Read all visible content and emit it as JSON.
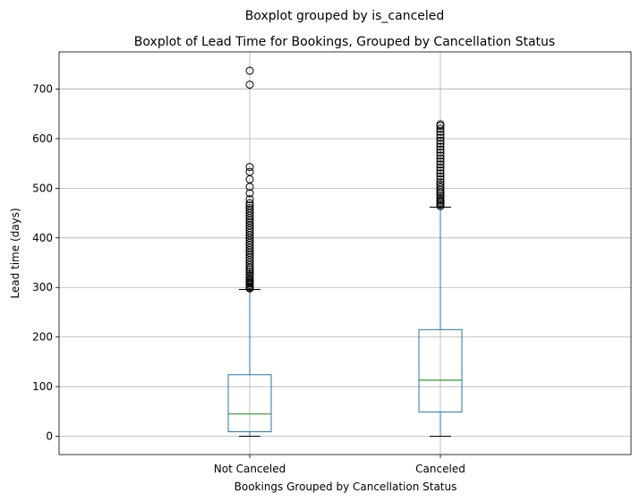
{
  "chart_data": {
    "type": "box",
    "suptitle": "Boxplot grouped by is_canceled",
    "title": "Boxplot of Lead Time for Bookings, Grouped by Cancellation Status",
    "xlabel": "Bookings Grouped by Cancellation Status",
    "ylabel": "Lead time (days)",
    "ylim": [
      -37,
      775
    ],
    "yticks": [
      0,
      100,
      200,
      300,
      400,
      500,
      600,
      700
    ],
    "grid": true,
    "categories": [
      "Not Canceled",
      "Canceled"
    ],
    "boxes": [
      {
        "category": "Not Canceled",
        "whisker_low": 0,
        "q1": 9,
        "median": 45,
        "q3": 124,
        "whisker_high": 296,
        "outliers": [
          298,
          300,
          302,
          305,
          308,
          310,
          313,
          316,
          320,
          324,
          328,
          332,
          336,
          340,
          345,
          350,
          355,
          360,
          365,
          370,
          375,
          380,
          385,
          390,
          395,
          400,
          405,
          410,
          415,
          420,
          425,
          430,
          435,
          440,
          445,
          450,
          455,
          460,
          465,
          470,
          478,
          490,
          503,
          518,
          533,
          543,
          709,
          737
        ]
      },
      {
        "category": "Canceled",
        "whisker_low": 0,
        "q1": 49,
        "median": 113,
        "q3": 215,
        "whisker_high": 462,
        "outliers": [
          464,
          467,
          470,
          473,
          476,
          480,
          484,
          488,
          492,
          497,
          502,
          507,
          512,
          518,
          524,
          530,
          536,
          542,
          548,
          554,
          560,
          566,
          572,
          578,
          584,
          590,
          596,
          602,
          608,
          614,
          620,
          626,
          629
        ]
      }
    ],
    "colors": {
      "box": "#1f77b4",
      "median": "#2ca02c",
      "caps": "#000000",
      "grid": "#b0b0b0",
      "outlier": "#000000"
    }
  }
}
